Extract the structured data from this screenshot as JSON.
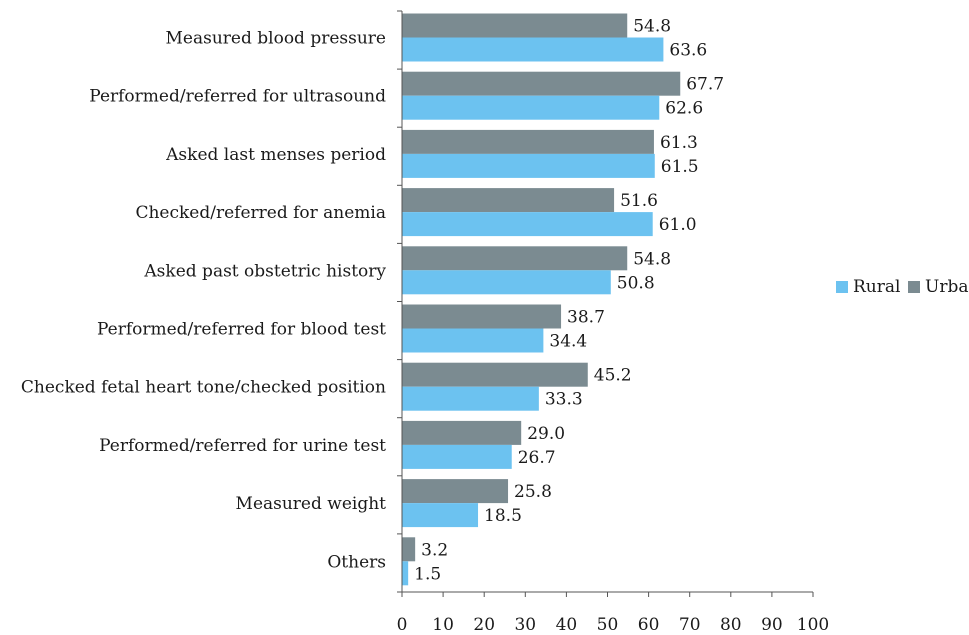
{
  "chart_data": {
    "type": "bar",
    "orientation": "horizontal",
    "categories": [
      "Measured blood pressure",
      "Performed/referred for ultrasound",
      "Asked last menses period",
      "Checked/referred for anemia",
      "Asked past obstetric history",
      "Performed/referred for blood test",
      "Checked fetal heart tone/checked position",
      "Performed/referred for urine test",
      "Measured weight",
      "Others"
    ],
    "series": [
      {
        "name": "Urban",
        "color": "#7b8b91",
        "values": [
          54.8,
          67.7,
          61.3,
          51.6,
          54.8,
          38.7,
          45.2,
          29.0,
          25.8,
          3.2
        ],
        "labels": [
          "54.8",
          "67.7",
          "61.3",
          "51.6",
          "54.8",
          "38.7",
          "45.2",
          "29.0",
          "25.8",
          "3.2"
        ]
      },
      {
        "name": "Rural",
        "color": "#6cc2f0",
        "values": [
          63.6,
          62.6,
          61.5,
          61.0,
          50.8,
          34.4,
          33.3,
          26.7,
          18.5,
          1.5
        ],
        "labels": [
          "63.6",
          "62.6",
          "61.5",
          "61.0",
          "50.8",
          "34.4",
          "33.3",
          "26.7",
          "18.5",
          "1.5"
        ]
      }
    ],
    "xlim": [
      0,
      100
    ],
    "xticks": [
      "0",
      "10",
      "20",
      "30",
      "40",
      "50",
      "60",
      "70",
      "80",
      "90",
      "100"
    ],
    "title": "",
    "xlabel": "",
    "ylabel": "",
    "grid": false,
    "legend": {
      "position": "right",
      "entries": [
        {
          "name": "Rural",
          "color": "#6cc2f0"
        },
        {
          "name": "Urban",
          "color": "#7b8b91"
        }
      ]
    }
  }
}
